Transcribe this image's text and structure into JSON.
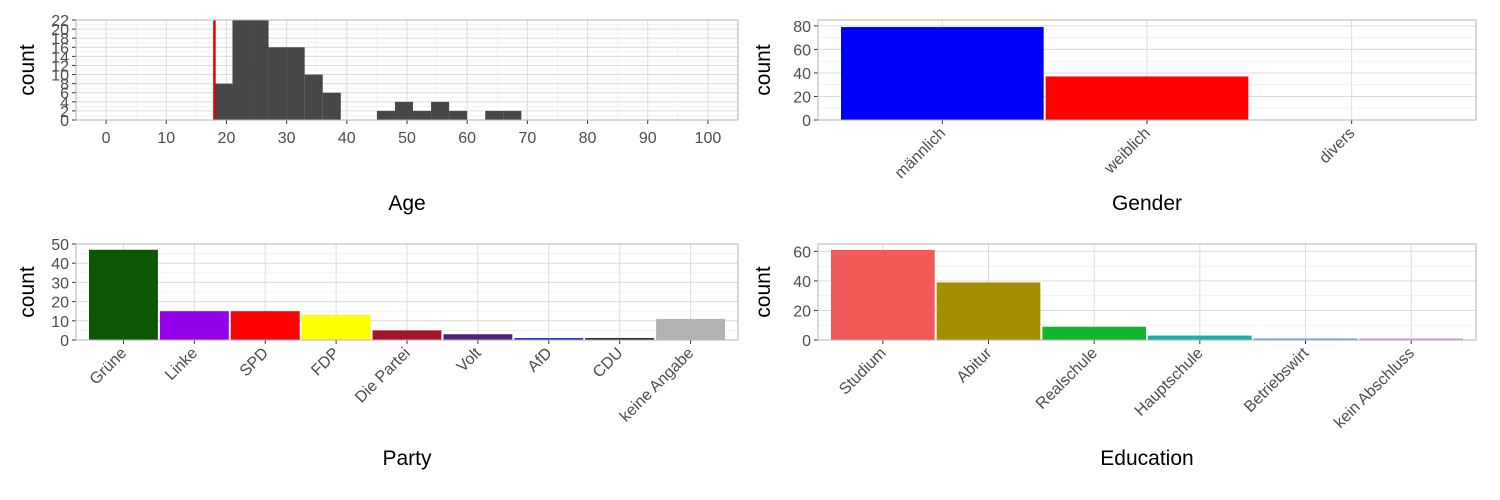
{
  "chart_data": [
    {
      "type": "bar",
      "variant": "histogram",
      "xlabel": "Age",
      "ylabel": "count",
      "xlim": [
        -5,
        105
      ],
      "ylim": [
        0,
        22
      ],
      "x_ticks": [
        "0",
        "10",
        "20",
        "30",
        "40",
        "50",
        "60",
        "70",
        "80",
        "90",
        "100"
      ],
      "y_ticks": [
        "0",
        "2",
        "4",
        "6",
        "8",
        "10",
        "12",
        "14",
        "16",
        "18",
        "20",
        "22"
      ],
      "bin_width": 3,
      "bins": [
        {
          "x": 19.5,
          "count": 8
        },
        {
          "x": 22.5,
          "count": 22
        },
        {
          "x": 25.5,
          "count": 22
        },
        {
          "x": 28.5,
          "count": 16
        },
        {
          "x": 31.5,
          "count": 16
        },
        {
          "x": 34.5,
          "count": 10
        },
        {
          "x": 37.5,
          "count": 6
        },
        {
          "x": 46.5,
          "count": 2
        },
        {
          "x": 49.5,
          "count": 4
        },
        {
          "x": 52.5,
          "count": 2
        },
        {
          "x": 55.5,
          "count": 4
        },
        {
          "x": 58.5,
          "count": 2
        },
        {
          "x": 64.5,
          "count": 2
        },
        {
          "x": 67.5,
          "count": 2
        }
      ],
      "reference_line_x": 18,
      "bar_color": "#474747",
      "reference_line_color": "#e60000",
      "grid": true
    },
    {
      "type": "bar",
      "xlabel": "Gender",
      "ylabel": "count",
      "ylim": [
        0,
        85
      ],
      "y_ticks": [
        "0",
        "20",
        "40",
        "60",
        "80"
      ],
      "categories": [
        "männlich",
        "weiblich",
        "divers"
      ],
      "values": [
        79,
        37,
        0
      ],
      "colors": [
        "#0000ff",
        "#ff0000",
        "#cccccc"
      ],
      "grid": true
    },
    {
      "type": "bar",
      "xlabel": "Party",
      "ylabel": "count",
      "ylim": [
        0,
        50
      ],
      "y_ticks": [
        "0",
        "10",
        "20",
        "30",
        "40",
        "50"
      ],
      "categories": [
        "Grüne",
        "Linke",
        "SPD",
        "FDP",
        "Die Partei",
        "Volt",
        "AfD",
        "CDU",
        "keine Angabe"
      ],
      "values": [
        47,
        15,
        15,
        13,
        5,
        3,
        1,
        1,
        11
      ],
      "colors": [
        "#0c5606",
        "#9400ea",
        "#ff0000",
        "#ffff00",
        "#a3152a",
        "#502379",
        "#1e1fd1",
        "#222222",
        "#b2b2b2"
      ],
      "grid": true
    },
    {
      "type": "bar",
      "xlabel": "Education",
      "ylabel": "count",
      "ylim": [
        0,
        65
      ],
      "y_ticks": [
        "0",
        "20",
        "40",
        "60"
      ],
      "categories": [
        "Studium",
        "Abitur",
        "Realschule",
        "Hauptschule",
        "Betriebswirt",
        "kein Abschluss"
      ],
      "values": [
        61,
        39,
        9,
        3,
        1,
        1
      ],
      "colors": [
        "#f25a5a",
        "#a38f00",
        "#14b52e",
        "#12b3aa",
        "#4d8ff7",
        "#e877ef"
      ],
      "grid": true
    }
  ]
}
